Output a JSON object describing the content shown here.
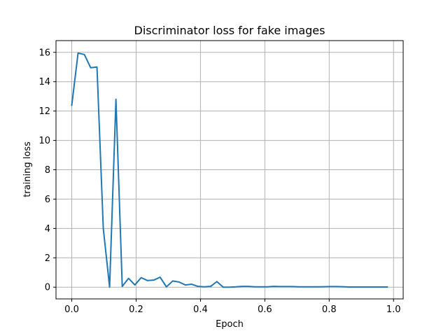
{
  "chart_data": {
    "type": "line",
    "title": "Discriminator loss for fake images",
    "xlabel": "Epoch",
    "ylabel": "training loss",
    "xlim": [
      -0.049,
      1.03
    ],
    "ylim": [
      -0.8,
      16.8
    ],
    "xticks": [
      0.0,
      0.2,
      0.4,
      0.6,
      0.8,
      1.0
    ],
    "xtick_labels": [
      "0.0",
      "0.2",
      "0.4",
      "0.6",
      "0.8",
      "1.0"
    ],
    "yticks": [
      0,
      2,
      4,
      6,
      8,
      10,
      12,
      14,
      16
    ],
    "ytick_labels": [
      "0",
      "2",
      "4",
      "6",
      "8",
      "10",
      "12",
      "14",
      "16"
    ],
    "grid": true,
    "color": "#1f77b4",
    "x": [
      0.0,
      0.0196,
      0.0392,
      0.0588,
      0.0784,
      0.098,
      0.1176,
      0.1373,
      0.1569,
      0.1765,
      0.1961,
      0.2157,
      0.2353,
      0.2549,
      0.2745,
      0.2941,
      0.3137,
      0.3333,
      0.3529,
      0.3725,
      0.3922,
      0.4118,
      0.4314,
      0.451,
      0.4706,
      0.4902,
      0.5098,
      0.5294,
      0.549,
      0.5686,
      0.5882,
      0.6078,
      0.6275,
      0.6471,
      0.6667,
      0.6863,
      0.7059,
      0.7255,
      0.7451,
      0.7647,
      0.7843,
      0.8039,
      0.8235,
      0.8431,
      0.8627,
      0.8824,
      0.902,
      0.9216,
      0.9412,
      0.9608,
      0.9804
    ],
    "y": [
      12.4,
      15.95,
      15.85,
      14.95,
      15.0,
      4.0,
      0.0,
      12.8,
      0.05,
      0.6,
      0.15,
      0.65,
      0.45,
      0.48,
      0.68,
      0.02,
      0.42,
      0.35,
      0.15,
      0.2,
      0.05,
      0.02,
      0.05,
      0.38,
      0.0,
      0.0,
      0.02,
      0.05,
      0.05,
      0.02,
      0.02,
      0.02,
      0.05,
      0.04,
      0.04,
      0.04,
      0.02,
      0.02,
      0.02,
      0.02,
      0.03,
      0.04,
      0.04,
      0.03,
      0.01,
      0.01,
      0.01,
      0.01,
      0.01,
      0.01,
      0.01
    ]
  }
}
